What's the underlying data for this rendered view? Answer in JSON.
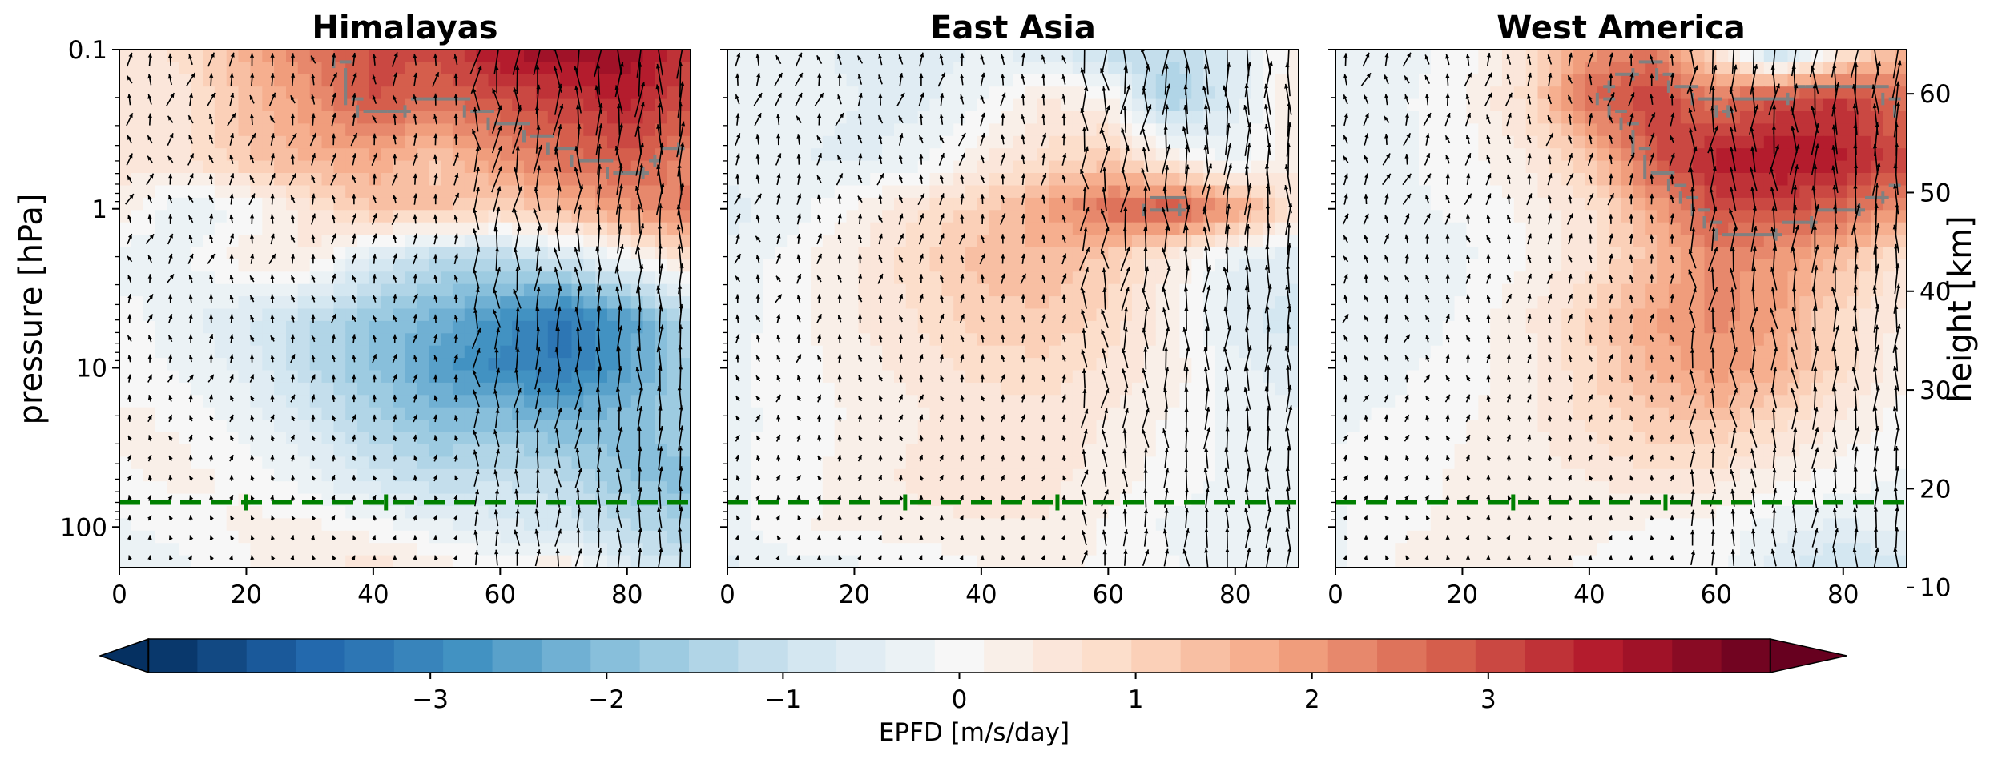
{
  "chart_data": {
    "type": "heatmap",
    "shared_y": {
      "label": "pressure [hPa]",
      "scale": "log",
      "ylim": [
        180,
        0.1
      ],
      "ticks": [
        0.1,
        1,
        10,
        100
      ],
      "tick_labels": [
        "0.1",
        "1",
        "10",
        "100"
      ]
    },
    "right_y": {
      "label": "height [km]",
      "ticks": [
        10,
        20,
        30,
        40,
        50,
        60
      ],
      "tick_labels": [
        "10",
        "20",
        "30",
        "40",
        "50",
        "60"
      ]
    },
    "x_ticks": [
      0,
      20,
      40,
      60,
      80
    ],
    "x_tick_labels": [
      "0",
      "20",
      "40",
      "60",
      "80"
    ],
    "xlim": [
      0,
      90
    ],
    "reference_line": {
      "pressure": 70,
      "color": "#008000",
      "style": "dashed"
    },
    "colors": {
      "contour": "#808080",
      "arrow": "#000000"
    },
    "panels": [
      {
        "title": "Himalayas",
        "reference_ticks_x": [
          20,
          42
        ],
        "grid": {
          "x": [
            0,
            10,
            20,
            30,
            40,
            50,
            60,
            70,
            80,
            90
          ],
          "p": [
            180,
            100,
            50,
            20,
            10,
            5,
            2,
            1,
            0.5,
            0.2,
            0.1
          ],
          "values": [
            [
              -0.4,
              -0.2,
              0.1,
              0.3,
              0.6,
              0.3,
              0.1,
              0.4,
              -0.6,
              -1.0
            ],
            [
              -0.2,
              0.0,
              0.2,
              0.2,
              0.0,
              -0.3,
              -0.6,
              -0.8,
              -1.2,
              -1.5
            ],
            [
              0.1,
              0.2,
              0.1,
              -0.3,
              -0.8,
              -1.2,
              -1.0,
              -1.2,
              -1.8,
              -2.0
            ],
            [
              0.2,
              0.1,
              -0.3,
              -0.8,
              -1.5,
              -2.0,
              -2.0,
              -2.2,
              -2.0,
              -1.5
            ],
            [
              0.0,
              -0.2,
              -0.5,
              -1.2,
              -1.8,
              -2.5,
              -3.0,
              -3.2,
              -2.5,
              -1.5
            ],
            [
              0.0,
              -0.3,
              -0.7,
              -1.2,
              -1.8,
              -2.2,
              -2.8,
              -3.4,
              -2.6,
              -1.2
            ],
            [
              -0.3,
              -0.2,
              0.3,
              0.4,
              -0.6,
              -1.2,
              -1.2,
              -0.8,
              0.0,
              0.8
            ],
            [
              0.3,
              -0.4,
              -0.1,
              0.6,
              1.3,
              1.3,
              1.0,
              1.5,
              2.0,
              2.5
            ],
            [
              0.6,
              0.6,
              1.2,
              1.6,
              1.7,
              1.2,
              2.0,
              2.5,
              2.8,
              2.2
            ],
            [
              0.5,
              0.6,
              1.4,
              2.0,
              3.0,
              2.6,
              3.0,
              3.2,
              3.6,
              3.0
            ],
            [
              0.4,
              0.8,
              1.6,
              2.4,
              3.0,
              3.0,
              3.8,
              4.0,
              4.0,
              3.2
            ]
          ]
        }
      },
      {
        "title": "East Asia",
        "reference_ticks_x": [
          28,
          52
        ],
        "grid": {
          "x": [
            0,
            10,
            20,
            30,
            40,
            50,
            60,
            70,
            80,
            90
          ],
          "p": [
            180,
            100,
            50,
            20,
            10,
            5,
            2,
            1,
            0.5,
            0.2,
            0.1
          ],
          "values": [
            [
              -0.5,
              -0.3,
              -0.2,
              -0.1,
              0.1,
              0.2,
              0.1,
              -0.1,
              -0.3,
              -0.4
            ],
            [
              -0.3,
              0.1,
              0.2,
              0.3,
              0.4,
              0.4,
              0.1,
              -0.2,
              -0.3,
              -0.3
            ],
            [
              -0.2,
              0.0,
              0.3,
              0.5,
              0.6,
              0.5,
              0.3,
              0.0,
              -0.2,
              -0.2
            ],
            [
              -0.2,
              -0.1,
              0.2,
              0.4,
              0.5,
              0.6,
              0.4,
              0.1,
              -0.3,
              -0.4
            ],
            [
              -0.2,
              0.0,
              0.3,
              0.5,
              0.8,
              0.9,
              0.6,
              0.3,
              -0.3,
              -0.6
            ],
            [
              -0.3,
              0.0,
              0.4,
              0.7,
              1.1,
              1.2,
              0.9,
              0.2,
              -0.6,
              -0.9
            ],
            [
              -0.4,
              0.0,
              0.4,
              0.9,
              1.4,
              1.5,
              1.2,
              0.4,
              -0.4,
              -0.6
            ],
            [
              -0.5,
              -0.3,
              0.2,
              0.7,
              1.1,
              1.8,
              2.6,
              3.0,
              2.0,
              0.6
            ],
            [
              -0.3,
              -0.4,
              -0.5,
              -0.3,
              0.4,
              0.8,
              1.2,
              0.4,
              -0.2,
              0.3
            ],
            [
              -0.2,
              -0.3,
              -0.4,
              -0.5,
              -0.2,
              0.4,
              0.2,
              -1.6,
              -0.6,
              0.5
            ],
            [
              -0.2,
              -0.3,
              -0.5,
              -0.6,
              -0.4,
              -0.6,
              -1.2,
              -1.2,
              -0.6,
              0.3
            ]
          ]
        }
      },
      {
        "title": "West America",
        "reference_ticks_x": [
          28,
          52
        ],
        "grid": {
          "x": [
            0,
            10,
            20,
            30,
            40,
            50,
            60,
            70,
            80,
            90
          ],
          "p": [
            180,
            100,
            50,
            20,
            10,
            5,
            2,
            1,
            0.5,
            0.2,
            0.1
          ],
          "values": [
            [
              -0.2,
              0.2,
              0.3,
              0.2,
              0.1,
              0.0,
              0.0,
              -0.6,
              -1.0,
              -0.8
            ],
            [
              -0.2,
              0.1,
              0.2,
              0.3,
              0.2,
              0.1,
              0.0,
              -0.3,
              -0.5,
              -0.3
            ],
            [
              -0.1,
              0.0,
              0.2,
              0.3,
              0.4,
              0.6,
              0.5,
              0.2,
              0.0,
              -0.2
            ],
            [
              -0.2,
              -0.1,
              0.1,
              0.3,
              0.8,
              1.2,
              1.4,
              0.9,
              0.4,
              0.0
            ],
            [
              -0.3,
              -0.2,
              0.0,
              0.3,
              0.9,
              1.6,
              2.0,
              1.6,
              0.8,
              0.2
            ],
            [
              -0.4,
              -0.3,
              -0.1,
              0.4,
              1.0,
              1.8,
              2.2,
              1.8,
              0.8,
              0.3
            ],
            [
              -0.4,
              -0.3,
              -0.2,
              0.1,
              0.6,
              1.4,
              2.2,
              2.0,
              1.4,
              0.6
            ],
            [
              -0.3,
              -0.2,
              -0.1,
              0.2,
              0.6,
              1.8,
              3.0,
              3.0,
              2.6,
              2.0
            ],
            [
              -0.2,
              -0.2,
              0.0,
              0.4,
              1.2,
              2.8,
              3.6,
              3.8,
              3.6,
              3.0
            ],
            [
              -0.3,
              -0.2,
              0.1,
              0.8,
              2.6,
              3.2,
              2.4,
              3.0,
              3.2,
              2.4
            ],
            [
              -0.4,
              -0.3,
              0.0,
              0.6,
              2.0,
              2.4,
              0.6,
              -1.6,
              0.4,
              1.6
            ]
          ]
        }
      }
    ],
    "colorbar": {
      "label": "EPFD [m/s/day]",
      "range": [
        -4.6,
        4.6
      ],
      "extend": "both",
      "ticks": [
        -3,
        -2,
        -1,
        0,
        1,
        2,
        3
      ],
      "tick_labels": [
        "−3",
        "−2",
        "−1",
        "0",
        "1",
        "2",
        "3"
      ],
      "colormap": "RdBu_r",
      "color_stops": [
        "#053061",
        "#2166ac",
        "#4393c3",
        "#92c5de",
        "#d1e5f0",
        "#f7f7f7",
        "#fddbc7",
        "#f4a582",
        "#d6604d",
        "#b2182b",
        "#67001f"
      ]
    }
  }
}
